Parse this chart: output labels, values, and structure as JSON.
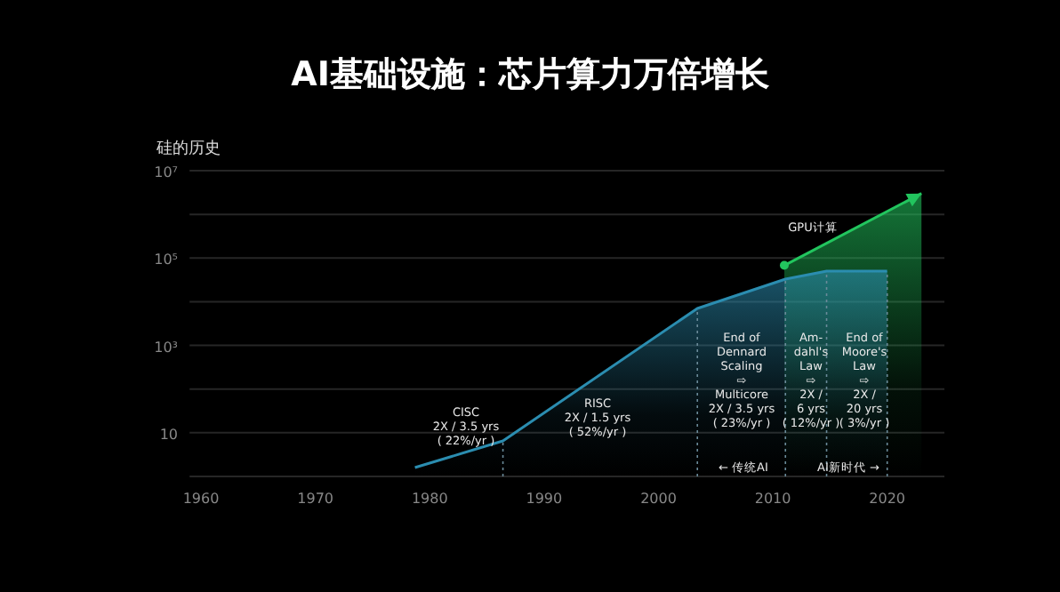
{
  "chart_data": {
    "type": "area",
    "title": "AI基础设施：芯片算力万倍增长",
    "ylabel": "硅的历史",
    "log": "y",
    "xlim": [
      1959,
      2025
    ],
    "ylim": [
      1,
      10000000
    ],
    "xticks": [
      1960,
      1970,
      1980,
      1990,
      2000,
      2010,
      2020
    ],
    "yticks": [
      {
        "value": 1,
        "label": null
      },
      10,
      {
        "value": 100,
        "label": null
      },
      {
        "value": 1000,
        "label": "10³"
      },
      {
        "value": 10000,
        "label": null
      },
      {
        "value": 100000,
        "label": "10⁵"
      },
      {
        "value": 1000000,
        "label": null
      },
      {
        "value": 10000000,
        "label": "10⁷"
      }
    ],
    "grid": "y",
    "series": [
      {
        "color": "#2b8db0",
        "x": [
          1978.7,
          1986.4,
          2003.4,
          2011.1,
          2014.7,
          2020
        ],
        "values": [
          1.6,
          6.5,
          7000,
          33000,
          50000,
          50000
        ]
      },
      {
        "color": "#22c55e",
        "x": [
          2011,
          2023
        ],
        "values": [
          68000,
          3000000
        ]
      }
    ],
    "ref_lines": [
      {
        "axis": "x",
        "value": 1986.4,
        "line_style": "dotted"
      },
      {
        "axis": "x",
        "value": 2003.4,
        "line_style": "dotted"
      },
      {
        "axis": "x",
        "value": 2011.1,
        "line_style": "dotted"
      },
      {
        "axis": "x",
        "value": 2014.7,
        "line_style": "dotted"
      },
      {
        "axis": "x",
        "value": 2020,
        "line_style": "dotted"
      }
    ],
    "annotations": [
      "CISC\n2X / 3.5 yrs\n( 22%/yr )",
      "RISC\n2X / 1.5 yrs\n( 52%/yr )",
      "End of\nDennard\nScaling\n⇨\nMulticore\n2X / 3.5 yrs\n( 23%/yr )",
      "Am-\ndahl's\nLaw\n⇨\n2X /\n6 yrs\n( 12%/yr )",
      "End of\nMoore's\nLaw\n⇨\n2X /\n20 yrs\n( 3%/yr )",
      "← 传统AI",
      "AI新时代 →",
      "GPU计算"
    ]
  }
}
